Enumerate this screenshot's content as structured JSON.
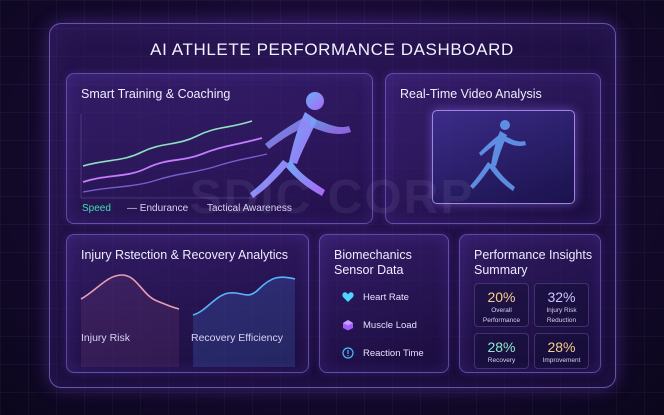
{
  "dashboard": {
    "title": "AI ATHLETE PERFORMANCE DASHBOARD"
  },
  "training": {
    "title": "Smart Training & Coaching",
    "legend": [
      "Speed",
      "— Endurance",
      "Tactical Awareness"
    ]
  },
  "video": {
    "title": "Real-Time Video Analysis"
  },
  "injury": {
    "title": "Injury Rstection & Recovery Analytics",
    "left_label": "Injury Risk",
    "right_label": "Recovery Efficiency"
  },
  "biomech": {
    "title_line1": "Biomechanics",
    "title_line2": "Sensor Data",
    "items": [
      {
        "label": "Heart Rate",
        "icon": "heart-icon"
      },
      {
        "label": "Muscle Load",
        "icon": "cube-icon"
      },
      {
        "label": "Reaction Time",
        "icon": "alert-circle-icon"
      }
    ]
  },
  "insights": {
    "title_line1": "Performance Insights",
    "title_line2": "Summary",
    "stats": [
      {
        "value": "20%",
        "label1": "Overall",
        "label2": "Performance",
        "color": "#f5cf8a"
      },
      {
        "value": "32%",
        "label1": "Injury Risk",
        "label2": "Reduction",
        "color": "#cfc6ff"
      },
      {
        "value": "28%",
        "label1": "Recovery",
        "label2": "",
        "color": "#8fe6d0"
      },
      {
        "value": "28%",
        "label1": "Improvement",
        "label2": "",
        "color": "#f5cf8a"
      }
    ]
  },
  "watermark": "SDIC CORP",
  "colors": {
    "accent": "#9b6bff",
    "teal": "#3fe0b0",
    "pink": "#e08ab0",
    "blue": "#4aa8ff"
  }
}
